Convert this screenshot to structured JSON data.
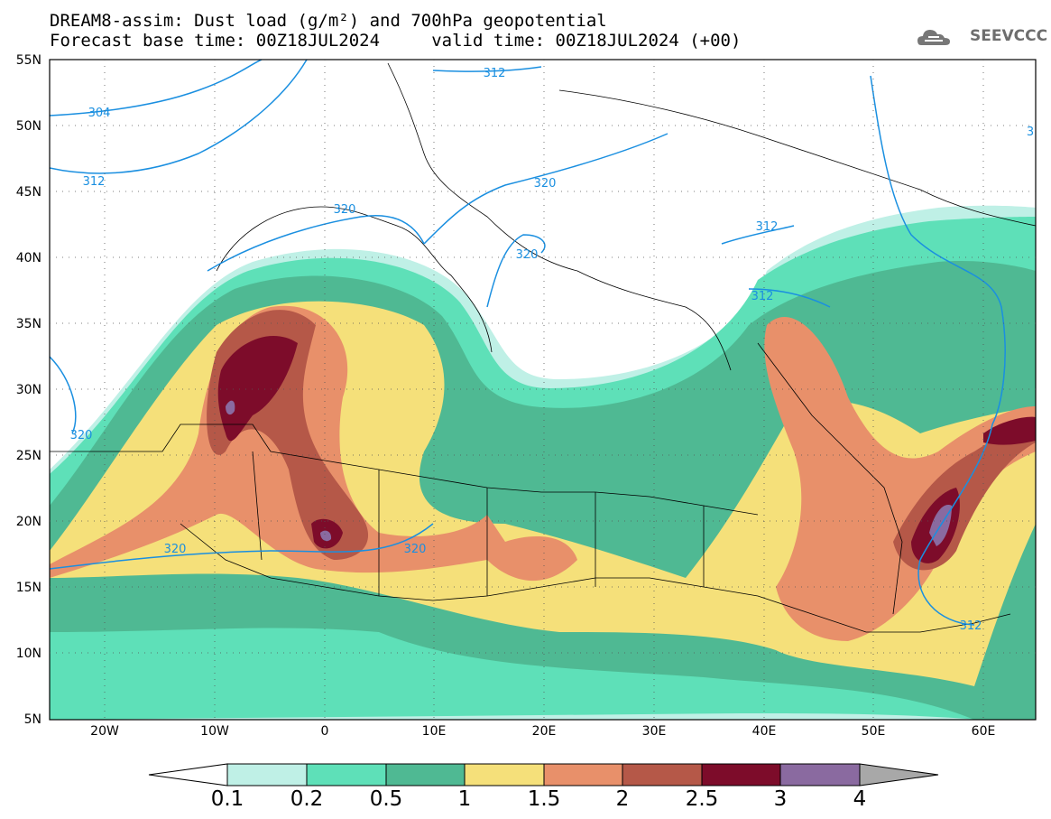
{
  "title": {
    "line1": "DREAM8-assim: Dust load (g/m²) and 700hPa geopotential",
    "line2": "Forecast base time: 00Z18JUL2024     valid time: 00Z18JUL2024 (+00)"
  },
  "logo": {
    "text": "SEEVCCC",
    "icon": "cloud-icon"
  },
  "map": {
    "lat_ticks": [
      "55N",
      "50N",
      "45N",
      "40N",
      "35N",
      "30N",
      "25N",
      "20N",
      "15N",
      "10N",
      "5N"
    ],
    "lon_ticks": [
      "20W",
      "10W",
      "0",
      "10E",
      "20E",
      "30E",
      "40E",
      "50E",
      "60E"
    ],
    "contour_labels": [
      "304",
      "312",
      "312",
      "312",
      "312",
      "312",
      "320",
      "320",
      "320",
      "320",
      "320",
      "320",
      "3"
    ]
  },
  "colorbar": {
    "labels": [
      "0.1",
      "0.2",
      "0.5",
      "1",
      "1.5",
      "2",
      "2.5",
      "3",
      "4"
    ],
    "colors": [
      "#ffffff",
      "#bff0e6",
      "#5ee0b8",
      "#4fb993",
      "#f5e07a",
      "#e8906a",
      "#b55848",
      "#7d0c2a",
      "#8a6aa0",
      "#a8a8a8"
    ]
  }
}
